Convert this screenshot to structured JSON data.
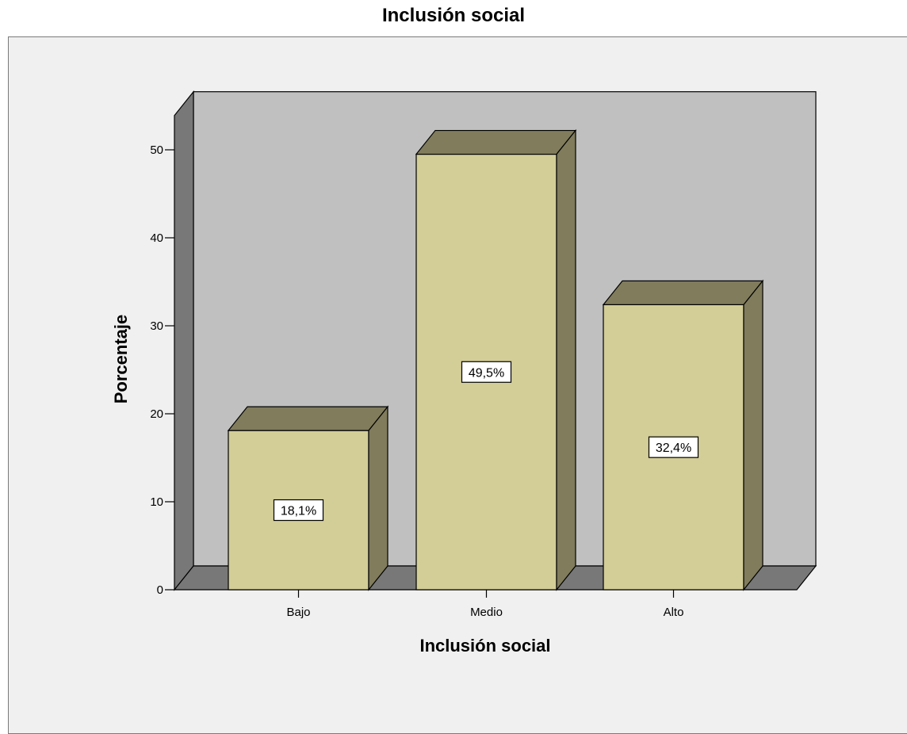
{
  "chart_data": {
    "type": "bar",
    "title": "Inclusión social",
    "xlabel": "Inclusión social",
    "ylabel": "Porcentaje",
    "categories": [
      "Bajo",
      "Medio",
      "Alto"
    ],
    "values": [
      18.1,
      49.5,
      32.4
    ],
    "data_labels": [
      "18,1%",
      "49,5%",
      "32,4%"
    ],
    "yticks": [
      0,
      10,
      20,
      30,
      40,
      50
    ],
    "ylim": [
      0,
      53.9
    ],
    "grid": false,
    "legend": "none",
    "style": "3d",
    "colors": {
      "bar_front": "#d3cd98",
      "bar_top_side": "#807c5c",
      "wall": "#c0c0c0",
      "floor_side": "#787878",
      "frame_bg": "#f0f0f0"
    }
  }
}
